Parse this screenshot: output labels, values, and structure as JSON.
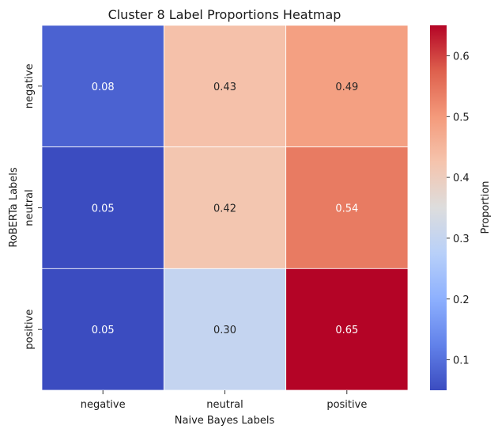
{
  "chart_data": {
    "type": "heatmap",
    "title": "Cluster 8 Label Proportions Heatmap",
    "xlabel": "Naive Bayes Labels",
    "ylabel": "RoBERTa Labels",
    "x_categories": [
      "negative",
      "neutral",
      "positive"
    ],
    "y_categories": [
      "negative",
      "neutral",
      "positive"
    ],
    "values": [
      [
        0.08,
        0.43,
        0.49
      ],
      [
        0.05,
        0.42,
        0.54
      ],
      [
        0.05,
        0.3,
        0.65
      ]
    ],
    "value_labels": [
      [
        "0.08",
        "0.43",
        "0.49"
      ],
      [
        "0.05",
        "0.42",
        "0.54"
      ],
      [
        "0.05",
        "0.30",
        "0.65"
      ]
    ],
    "colorbar": {
      "label": "Proportion",
      "vmin": 0.05,
      "vmax": 0.65,
      "ticks": [
        0.1,
        0.2,
        0.3,
        0.4,
        0.5,
        0.6
      ],
      "tick_labels": [
        "0.1",
        "0.2",
        "0.3",
        "0.4",
        "0.5",
        "0.6"
      ],
      "colormap": "coolwarm"
    },
    "grid": false
  },
  "colors": {
    "low": "#3b4cc0",
    "mid": "#dddddd",
    "high": "#b40426",
    "cell_border": "#ffffff",
    "text_dark": "#262626",
    "text_light": "#ffffff"
  }
}
